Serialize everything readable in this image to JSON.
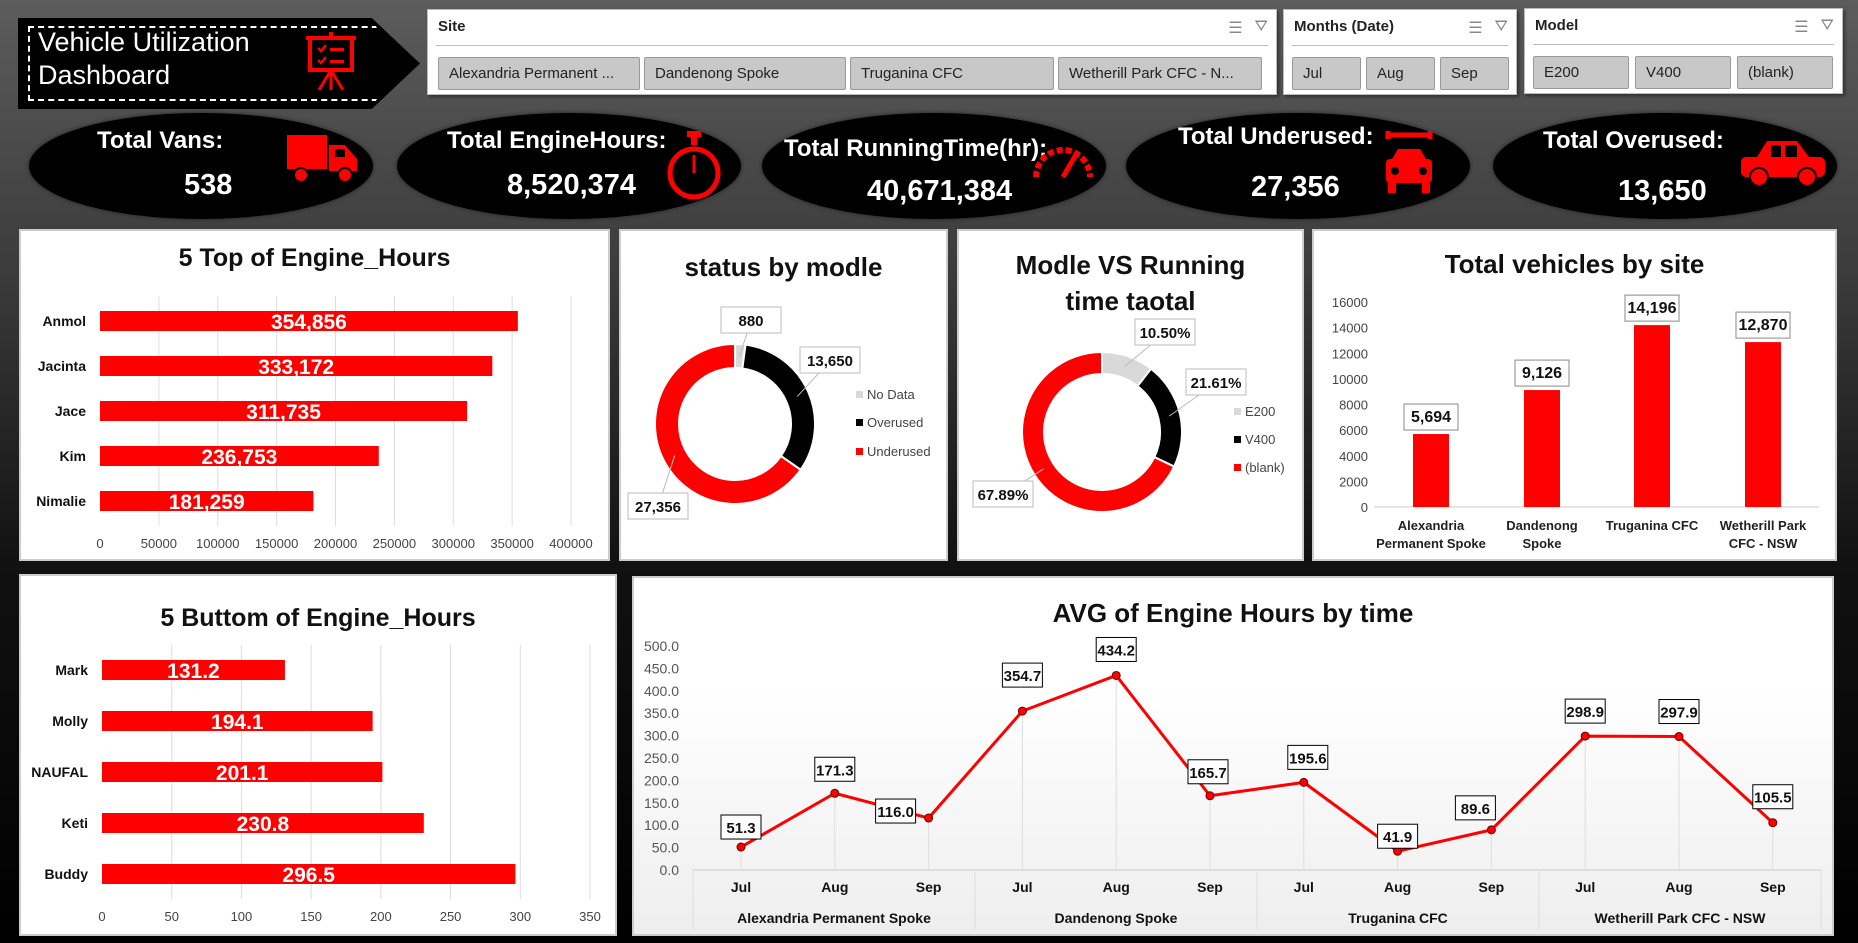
{
  "header": {
    "title_line1": "Vehicle Utilization",
    "title_line2": "Dashboard",
    "icon": "presentation-board-icon"
  },
  "slicers": {
    "site": {
      "label": "Site",
      "items": [
        "Alexandria Permanent ...",
        "Dandenong Spoke",
        "Truganina CFC",
        "Wetherill Park CFC - N..."
      ]
    },
    "months": {
      "label": "Months (Date)",
      "items": [
        "Jul",
        "Aug",
        "Sep"
      ]
    },
    "model": {
      "label": "Model",
      "items": [
        "E200",
        "V400",
        "(blank)"
      ]
    }
  },
  "kpis": [
    {
      "label": "Total Vans:",
      "value": "538",
      "icon": "truck-icon"
    },
    {
      "label": "Total  EngineHours:",
      "value": "8,520,374",
      "icon": "stopwatch-icon"
    },
    {
      "label": "Total  RunningTime(hr):",
      "value": "40,671,384",
      "icon": "speedometer-icon"
    },
    {
      "label": "Total Underused:",
      "value": "27,356",
      "icon": "car-repair-icon"
    },
    {
      "label": "Total  Overused:",
      "value": "13,650",
      "icon": "car-icon"
    }
  ],
  "colors": {
    "accent": "#ff0000",
    "dark": "#000000",
    "light": "#d9d9d9"
  },
  "chart_data": [
    {
      "type": "bar",
      "orientation": "horizontal",
      "title": "5 Top of Engine_Hours",
      "categories": [
        "Anmol",
        "Jacinta",
        "Jace",
        "Kim",
        "Nimalie"
      ],
      "values": [
        354856,
        333172,
        311735,
        236753,
        181259
      ],
      "labels": [
        "354,856",
        "333,172",
        "311,735",
        "236,753",
        "181,259"
      ],
      "xlim": [
        0,
        400000
      ],
      "ticks": [
        "0",
        "50000",
        "100000",
        "150000",
        "200000",
        "250000",
        "300000",
        "350000",
        "400000"
      ],
      "grid": true
    },
    {
      "type": "pie",
      "donut": true,
      "title": "status by modle",
      "categories": [
        "No Data",
        "Overused",
        "Underused"
      ],
      "values": [
        880,
        13650,
        27356
      ],
      "labels": [
        "880",
        "13,650",
        "27,356"
      ],
      "colors": [
        "#d9d9d9",
        "#000000",
        "#ff0000"
      ],
      "legend": "right"
    },
    {
      "type": "pie",
      "donut": true,
      "title_line1": "Modle VS Running",
      "title_line2": "time taotal",
      "categories": [
        "E200",
        "V400",
        "(blank)"
      ],
      "values": [
        10.5,
        21.61,
        67.89
      ],
      "labels": [
        "10.50%",
        "21.61%",
        "67.89%"
      ],
      "colors": [
        "#d9d9d9",
        "#000000",
        "#ff0000"
      ],
      "legend": "right"
    },
    {
      "type": "bar",
      "orientation": "vertical",
      "title": "Total vehicles by site",
      "categories": [
        [
          "Alexandria",
          "Permanent Spoke"
        ],
        [
          "Dandenong",
          "Spoke"
        ],
        [
          "Truganina CFC"
        ],
        [
          "Wetherill Park",
          "CFC - NSW"
        ]
      ],
      "values": [
        5694,
        9126,
        14196,
        12870
      ],
      "labels": [
        "5,694",
        "9,126",
        "14,196",
        "12,870"
      ],
      "ylim": [
        0,
        16000
      ],
      "ticks": [
        "0",
        "2000",
        "4000",
        "6000",
        "8000",
        "10000",
        "12000",
        "14000",
        "16000"
      ],
      "grid": false
    },
    {
      "type": "bar",
      "orientation": "horizontal",
      "title": "5 Buttom of Engine_Hours",
      "categories": [
        "Mark",
        "Molly",
        "NAUFAL",
        "Keti",
        "Buddy"
      ],
      "values": [
        131.2,
        194.1,
        201.1,
        230.8,
        296.5
      ],
      "labels": [
        "131.2",
        "194.1",
        "201.1",
        "230.8",
        "296.5"
      ],
      "xlim": [
        0,
        350
      ],
      "ticks": [
        "0",
        "50",
        "100",
        "150",
        "200",
        "250",
        "300",
        "350"
      ],
      "grid": true
    },
    {
      "type": "line",
      "title": "AVG of Engine Hours by time",
      "groups": [
        "Alexandria Permanent Spoke",
        "Dandenong Spoke",
        "Truganina CFC",
        "Wetherill Park CFC - NSW"
      ],
      "categories": [
        "Jul",
        "Aug",
        "Sep",
        "Jul",
        "Aug",
        "Sep",
        "Jul",
        "Aug",
        "Sep",
        "Jul",
        "Aug",
        "Sep"
      ],
      "values": [
        51.3,
        171.3,
        116.0,
        354.7,
        434.2,
        165.7,
        195.6,
        41.9,
        89.6,
        298.9,
        297.9,
        105.5
      ],
      "labels": [
        "51.3",
        "171.3",
        "116.0",
        "354.7",
        "434.2",
        "165.7",
        "195.6",
        "41.9",
        "89.6",
        "298.9",
        "297.9",
        "105.5"
      ],
      "ylim": [
        0,
        500
      ],
      "ticks": [
        "0.0",
        "50.0",
        "100.0",
        "150.0",
        "200.0",
        "250.0",
        "300.0",
        "350.0",
        "400.0",
        "450.0",
        "500.0"
      ],
      "grid": false
    }
  ]
}
